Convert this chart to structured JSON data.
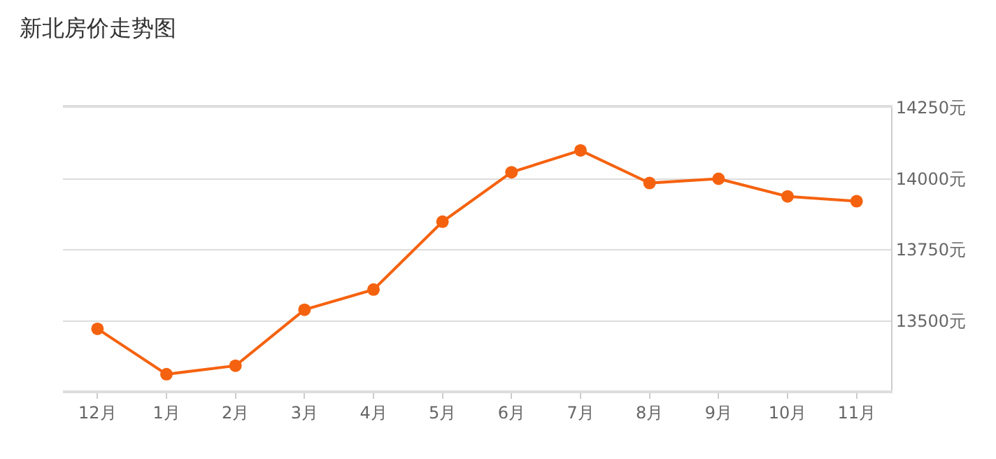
{
  "chart_data": {
    "type": "line",
    "title": "新北房价走势图",
    "categories": [
      "12月",
      "1月",
      "2月",
      "3月",
      "4月",
      "5月",
      "6月",
      "7月",
      "8月",
      "9月",
      "10月",
      "11月"
    ],
    "series": [
      {
        "color": "#f5620f",
        "values": [
          13472,
          13312,
          13342,
          13539,
          13610,
          13849,
          14023,
          14100,
          13985,
          14000,
          13938,
          13921
        ]
      }
    ],
    "ylim": [
      13255,
      14250
    ],
    "yticks": [
      {
        "value": 13500,
        "label": "13500元"
      },
      {
        "value": 13750,
        "label": "13750元"
      },
      {
        "value": 14000,
        "label": "14000元"
      },
      {
        "value": 14250,
        "label": "14250元"
      }
    ],
    "grid": "y",
    "marker": "circle",
    "line_style": "solid"
  }
}
